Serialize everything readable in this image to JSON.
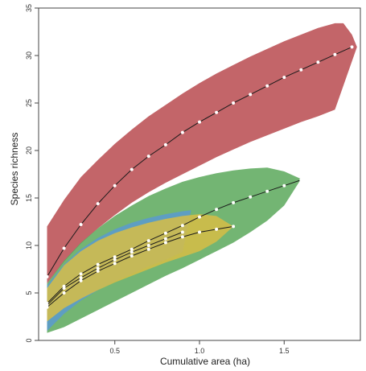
{
  "chart_data": {
    "type": "line",
    "xlabel": "Cumulative area (ha)",
    "ylabel": "Species richness",
    "xlim": [
      0.05,
      1.95
    ],
    "ylim": [
      0,
      35
    ],
    "xticks": [
      "0.5",
      "1.0",
      "1.5"
    ],
    "xtick_values": [
      0.5,
      1.0,
      1.5
    ],
    "yticks": [
      "0",
      "5",
      "10",
      "15",
      "20",
      "25",
      "30",
      "35"
    ],
    "ytick_values": [
      0,
      5,
      10,
      15,
      20,
      25,
      30,
      35
    ],
    "grid": false,
    "legend": null,
    "bands": [
      {
        "color": "#b94a4f",
        "upper": [
          [
            0.1,
            12.0
          ],
          [
            0.2,
            14.8
          ],
          [
            0.3,
            17.2
          ],
          [
            0.4,
            19.0
          ],
          [
            0.5,
            20.7
          ],
          [
            0.6,
            22.2
          ],
          [
            0.7,
            23.6
          ],
          [
            0.8,
            24.8
          ],
          [
            0.9,
            26.0
          ],
          [
            1.0,
            27.1
          ],
          [
            1.1,
            28.1
          ],
          [
            1.2,
            29.0
          ],
          [
            1.3,
            29.9
          ],
          [
            1.4,
            30.7
          ],
          [
            1.5,
            31.5
          ],
          [
            1.6,
            32.2
          ],
          [
            1.7,
            32.9
          ],
          [
            1.8,
            33.4
          ],
          [
            1.85,
            33.4
          ],
          [
            1.9,
            32.2
          ],
          [
            1.93,
            30.9
          ]
        ],
        "lower": [
          [
            0.1,
            6.0
          ],
          [
            0.2,
            8.3
          ],
          [
            0.3,
            10.2
          ],
          [
            0.4,
            11.8
          ],
          [
            0.5,
            13.2
          ],
          [
            0.6,
            14.5
          ],
          [
            0.7,
            15.6
          ],
          [
            0.8,
            16.6
          ],
          [
            0.9,
            17.5
          ],
          [
            1.0,
            18.4
          ],
          [
            1.1,
            19.3
          ],
          [
            1.2,
            20.1
          ],
          [
            1.3,
            20.9
          ],
          [
            1.4,
            21.6
          ],
          [
            1.5,
            22.3
          ],
          [
            1.6,
            23.0
          ],
          [
            1.7,
            23.6
          ],
          [
            1.8,
            24.3
          ],
          [
            1.93,
            30.9
          ]
        ]
      },
      {
        "color": "#5aa85a",
        "upper": [
          [
            0.1,
            6.0
          ],
          [
            0.2,
            8.4
          ],
          [
            0.3,
            10.3
          ],
          [
            0.4,
            11.8
          ],
          [
            0.5,
            13.1
          ],
          [
            0.6,
            14.2
          ],
          [
            0.7,
            15.2
          ],
          [
            0.8,
            16.0
          ],
          [
            0.9,
            16.7
          ],
          [
            1.0,
            17.2
          ],
          [
            1.1,
            17.6
          ],
          [
            1.2,
            17.9
          ],
          [
            1.3,
            18.1
          ],
          [
            1.4,
            18.2
          ],
          [
            1.5,
            17.8
          ],
          [
            1.6,
            17.0
          ]
        ],
        "lower": [
          [
            0.1,
            0.8
          ],
          [
            0.2,
            1.4
          ],
          [
            0.3,
            2.3
          ],
          [
            0.4,
            3.2
          ],
          [
            0.5,
            4.1
          ],
          [
            0.6,
            5.0
          ],
          [
            0.7,
            5.9
          ],
          [
            0.8,
            6.8
          ],
          [
            0.9,
            7.6
          ],
          [
            1.0,
            8.5
          ],
          [
            1.1,
            9.4
          ],
          [
            1.2,
            10.3
          ],
          [
            1.3,
            11.4
          ],
          [
            1.4,
            12.6
          ],
          [
            1.5,
            14.2
          ],
          [
            1.6,
            17.0
          ]
        ]
      },
      {
        "color": "#5b9ad0",
        "upper": [
          [
            0.1,
            5.8
          ],
          [
            0.2,
            8.0
          ],
          [
            0.3,
            9.6
          ],
          [
            0.4,
            10.8
          ],
          [
            0.5,
            11.7
          ],
          [
            0.6,
            12.4
          ],
          [
            0.7,
            12.9
          ],
          [
            0.8,
            13.3
          ],
          [
            0.9,
            13.6
          ],
          [
            0.95,
            13.7
          ]
        ],
        "lower": [
          [
            0.1,
            1.0
          ],
          [
            0.2,
            2.8
          ],
          [
            0.3,
            4.2
          ],
          [
            0.4,
            5.3
          ],
          [
            0.5,
            6.2
          ],
          [
            0.6,
            7.0
          ],
          [
            0.7,
            7.8
          ],
          [
            0.8,
            8.5
          ],
          [
            0.9,
            9.3
          ],
          [
            0.95,
            13.7
          ]
        ]
      },
      {
        "color": "#d7bd45",
        "upper": [
          [
            0.1,
            5.5
          ],
          [
            0.2,
            7.9
          ],
          [
            0.3,
            9.4
          ],
          [
            0.4,
            10.5
          ],
          [
            0.5,
            11.3
          ],
          [
            0.6,
            11.9
          ],
          [
            0.7,
            12.4
          ],
          [
            0.8,
            12.8
          ],
          [
            0.9,
            13.1
          ],
          [
            1.0,
            13.3
          ],
          [
            1.1,
            13.1
          ],
          [
            1.2,
            12.0
          ]
        ],
        "lower": [
          [
            0.1,
            2.0
          ],
          [
            0.2,
            3.4
          ],
          [
            0.3,
            4.4
          ],
          [
            0.4,
            5.3
          ],
          [
            0.5,
            6.1
          ],
          [
            0.6,
            6.8
          ],
          [
            0.7,
            7.5
          ],
          [
            0.8,
            8.2
          ],
          [
            0.9,
            8.8
          ],
          [
            1.0,
            9.4
          ],
          [
            1.1,
            10.4
          ],
          [
            1.2,
            12.0
          ]
        ]
      }
    ],
    "series": [
      {
        "x": [
          0.1,
          0.2,
          0.3,
          0.4,
          0.5,
          0.6,
          0.7,
          0.8,
          0.9,
          1.0,
          1.1,
          1.2,
          1.3,
          1.4,
          1.5,
          1.6,
          1.7,
          1.8,
          1.9
        ],
        "values": [
          6.7,
          9.7,
          12.2,
          14.4,
          16.3,
          18.0,
          19.4,
          20.6,
          21.9,
          23.0,
          24.0,
          25.0,
          25.9,
          26.8,
          27.7,
          28.5,
          29.3,
          30.1,
          30.9
        ]
      },
      {
        "x": [
          0.1,
          0.2,
          0.3,
          0.4,
          0.5,
          0.6,
          0.7,
          0.8,
          0.9,
          1.0,
          1.1,
          1.2,
          1.3,
          1.4,
          1.5,
          1.6
        ],
        "values": [
          3.9,
          5.7,
          7.0,
          8.0,
          8.8,
          9.6,
          10.5,
          11.3,
          12.1,
          13.0,
          13.8,
          14.5,
          15.1,
          15.7,
          16.3,
          16.9
        ]
      },
      {
        "x": [
          0.1,
          0.2,
          0.3,
          0.4,
          0.5,
          0.6,
          0.7,
          0.8,
          0.9
        ],
        "values": [
          3.7,
          5.5,
          6.6,
          7.6,
          8.5,
          9.3,
          10.0,
          10.7,
          11.4
        ]
      },
      {
        "x": [
          0.1,
          0.2,
          0.3,
          0.4,
          0.5,
          0.6,
          0.7,
          0.8,
          0.9,
          1.0,
          1.1,
          1.2
        ],
        "values": [
          3.5,
          5.0,
          6.3,
          7.3,
          8.1,
          8.9,
          9.6,
          10.3,
          10.9,
          11.4,
          11.7,
          12.0
        ]
      }
    ]
  }
}
